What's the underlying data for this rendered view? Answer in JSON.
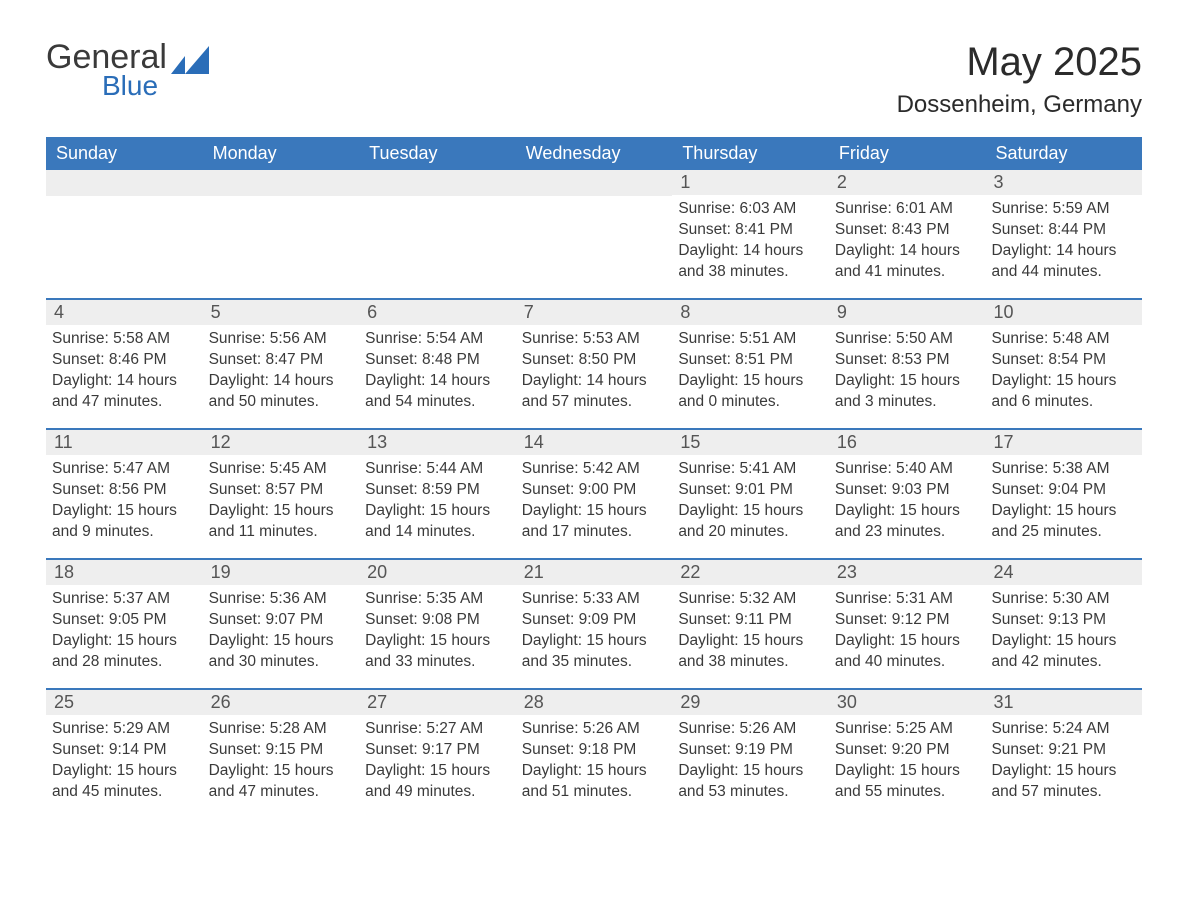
{
  "logo": {
    "text_main": "General",
    "text_sub": "Blue"
  },
  "title": "May 2025",
  "location": "Dossenheim, Germany",
  "weekday_header_bg": "#3a78bc",
  "weekday_header_fg": "#ffffff",
  "daynum_bg": "#eeeeee",
  "week_divider_color": "#3a78bc",
  "text_color": "#3a3a3a",
  "weekdays": [
    "Sunday",
    "Monday",
    "Tuesday",
    "Wednesday",
    "Thursday",
    "Friday",
    "Saturday"
  ],
  "weeks": [
    [
      null,
      null,
      null,
      null,
      {
        "n": "1",
        "sunrise": "6:03 AM",
        "sunset": "8:41 PM",
        "daylight": "14 hours and 38 minutes."
      },
      {
        "n": "2",
        "sunrise": "6:01 AM",
        "sunset": "8:43 PM",
        "daylight": "14 hours and 41 minutes."
      },
      {
        "n": "3",
        "sunrise": "5:59 AM",
        "sunset": "8:44 PM",
        "daylight": "14 hours and 44 minutes."
      }
    ],
    [
      {
        "n": "4",
        "sunrise": "5:58 AM",
        "sunset": "8:46 PM",
        "daylight": "14 hours and 47 minutes."
      },
      {
        "n": "5",
        "sunrise": "5:56 AM",
        "sunset": "8:47 PM",
        "daylight": "14 hours and 50 minutes."
      },
      {
        "n": "6",
        "sunrise": "5:54 AM",
        "sunset": "8:48 PM",
        "daylight": "14 hours and 54 minutes."
      },
      {
        "n": "7",
        "sunrise": "5:53 AM",
        "sunset": "8:50 PM",
        "daylight": "14 hours and 57 minutes."
      },
      {
        "n": "8",
        "sunrise": "5:51 AM",
        "sunset": "8:51 PM",
        "daylight": "15 hours and 0 minutes."
      },
      {
        "n": "9",
        "sunrise": "5:50 AM",
        "sunset": "8:53 PM",
        "daylight": "15 hours and 3 minutes."
      },
      {
        "n": "10",
        "sunrise": "5:48 AM",
        "sunset": "8:54 PM",
        "daylight": "15 hours and 6 minutes."
      }
    ],
    [
      {
        "n": "11",
        "sunrise": "5:47 AM",
        "sunset": "8:56 PM",
        "daylight": "15 hours and 9 minutes."
      },
      {
        "n": "12",
        "sunrise": "5:45 AM",
        "sunset": "8:57 PM",
        "daylight": "15 hours and 11 minutes."
      },
      {
        "n": "13",
        "sunrise": "5:44 AM",
        "sunset": "8:59 PM",
        "daylight": "15 hours and 14 minutes."
      },
      {
        "n": "14",
        "sunrise": "5:42 AM",
        "sunset": "9:00 PM",
        "daylight": "15 hours and 17 minutes."
      },
      {
        "n": "15",
        "sunrise": "5:41 AM",
        "sunset": "9:01 PM",
        "daylight": "15 hours and 20 minutes."
      },
      {
        "n": "16",
        "sunrise": "5:40 AM",
        "sunset": "9:03 PM",
        "daylight": "15 hours and 23 minutes."
      },
      {
        "n": "17",
        "sunrise": "5:38 AM",
        "sunset": "9:04 PM",
        "daylight": "15 hours and 25 minutes."
      }
    ],
    [
      {
        "n": "18",
        "sunrise": "5:37 AM",
        "sunset": "9:05 PM",
        "daylight": "15 hours and 28 minutes."
      },
      {
        "n": "19",
        "sunrise": "5:36 AM",
        "sunset": "9:07 PM",
        "daylight": "15 hours and 30 minutes."
      },
      {
        "n": "20",
        "sunrise": "5:35 AM",
        "sunset": "9:08 PM",
        "daylight": "15 hours and 33 minutes."
      },
      {
        "n": "21",
        "sunrise": "5:33 AM",
        "sunset": "9:09 PM",
        "daylight": "15 hours and 35 minutes."
      },
      {
        "n": "22",
        "sunrise": "5:32 AM",
        "sunset": "9:11 PM",
        "daylight": "15 hours and 38 minutes."
      },
      {
        "n": "23",
        "sunrise": "5:31 AM",
        "sunset": "9:12 PM",
        "daylight": "15 hours and 40 minutes."
      },
      {
        "n": "24",
        "sunrise": "5:30 AM",
        "sunset": "9:13 PM",
        "daylight": "15 hours and 42 minutes."
      }
    ],
    [
      {
        "n": "25",
        "sunrise": "5:29 AM",
        "sunset": "9:14 PM",
        "daylight": "15 hours and 45 minutes."
      },
      {
        "n": "26",
        "sunrise": "5:28 AM",
        "sunset": "9:15 PM",
        "daylight": "15 hours and 47 minutes."
      },
      {
        "n": "27",
        "sunrise": "5:27 AM",
        "sunset": "9:17 PM",
        "daylight": "15 hours and 49 minutes."
      },
      {
        "n": "28",
        "sunrise": "5:26 AM",
        "sunset": "9:18 PM",
        "daylight": "15 hours and 51 minutes."
      },
      {
        "n": "29",
        "sunrise": "5:26 AM",
        "sunset": "9:19 PM",
        "daylight": "15 hours and 53 minutes."
      },
      {
        "n": "30",
        "sunrise": "5:25 AM",
        "sunset": "9:20 PM",
        "daylight": "15 hours and 55 minutes."
      },
      {
        "n": "31",
        "sunrise": "5:24 AM",
        "sunset": "9:21 PM",
        "daylight": "15 hours and 57 minutes."
      }
    ]
  ],
  "labels": {
    "sunrise": "Sunrise: ",
    "sunset": "Sunset: ",
    "daylight": "Daylight: "
  }
}
